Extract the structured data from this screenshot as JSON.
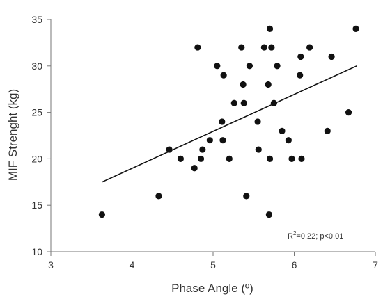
{
  "chart_data": {
    "type": "scatter",
    "title": "",
    "xlabel": "Phase Angle (º)",
    "ylabel": "MIF Strenght (kg)",
    "xlim": [
      3,
      7
    ],
    "ylim": [
      10,
      35
    ],
    "xticks": [
      3,
      4,
      5,
      6,
      7
    ],
    "yticks": [
      10,
      15,
      20,
      25,
      30,
      35
    ],
    "grid": false,
    "legend": "none",
    "marker_color": "#111111",
    "line_color": "#111111",
    "annotation": {
      "r_label": "R",
      "r_exponent": "2",
      "text": "=0.22; p<0.01"
    },
    "trendline": {
      "x": [
        3.63,
        6.77
      ],
      "y": [
        17.5,
        30.0
      ]
    },
    "series": [
      {
        "points": [
          [
            3.63,
            14
          ],
          [
            4.33,
            16
          ],
          [
            4.46,
            21
          ],
          [
            4.6,
            20
          ],
          [
            4.77,
            19
          ],
          [
            4.81,
            32
          ],
          [
            4.85,
            20
          ],
          [
            4.87,
            21
          ],
          [
            4.96,
            22
          ],
          [
            5.05,
            30
          ],
          [
            5.11,
            24
          ],
          [
            5.12,
            22
          ],
          [
            5.13,
            29
          ],
          [
            5.2,
            20
          ],
          [
            5.26,
            26
          ],
          [
            5.35,
            32
          ],
          [
            5.37,
            28
          ],
          [
            5.38,
            26
          ],
          [
            5.41,
            16
          ],
          [
            5.45,
            30
          ],
          [
            5.55,
            24
          ],
          [
            5.56,
            21
          ],
          [
            5.63,
            32
          ],
          [
            5.68,
            28
          ],
          [
            5.69,
            14
          ],
          [
            5.7,
            20
          ],
          [
            5.7,
            34
          ],
          [
            5.72,
            32
          ],
          [
            5.75,
            26
          ],
          [
            5.79,
            30
          ],
          [
            5.85,
            23
          ],
          [
            5.93,
            22
          ],
          [
            5.97,
            20
          ],
          [
            6.07,
            29
          ],
          [
            6.08,
            31
          ],
          [
            6.09,
            20
          ],
          [
            6.19,
            32
          ],
          [
            6.41,
            23
          ],
          [
            6.46,
            31
          ],
          [
            6.67,
            25
          ],
          [
            6.76,
            34
          ]
        ]
      }
    ]
  }
}
